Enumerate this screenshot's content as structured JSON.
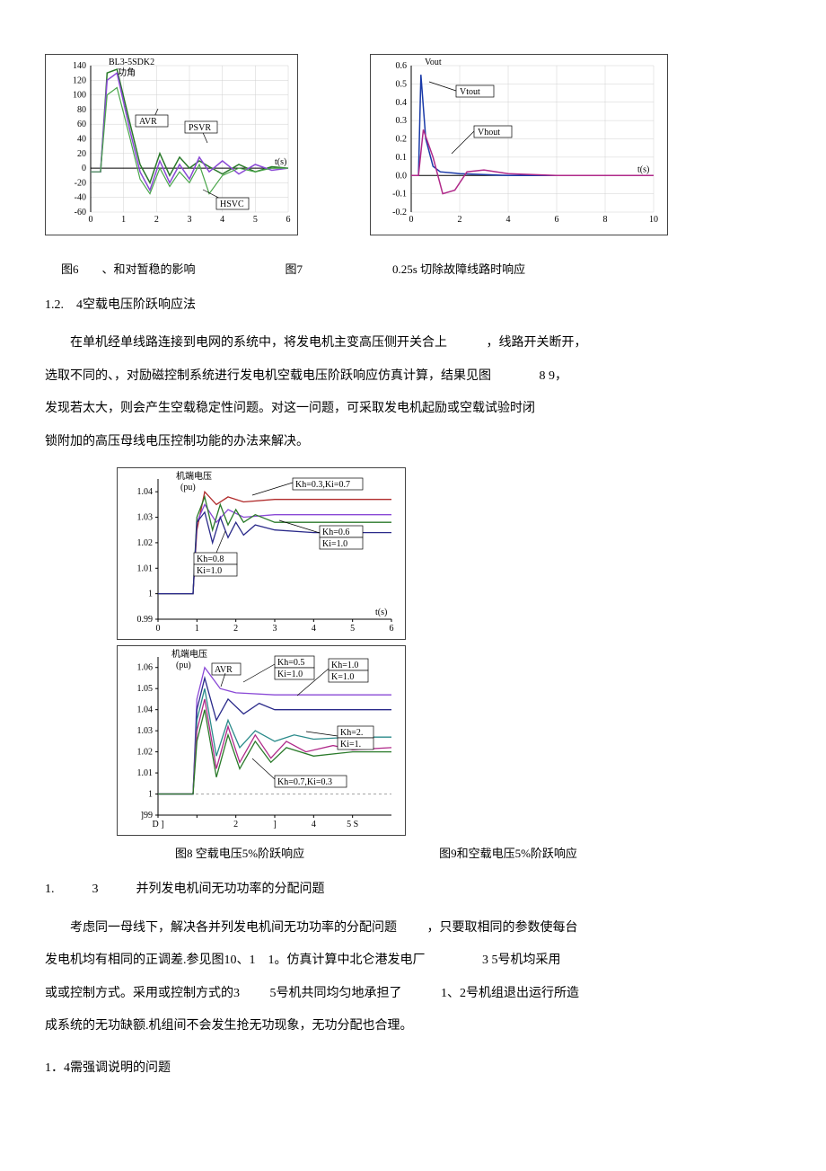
{
  "fig6": {
    "title": "BL3-5SDK2",
    "subtitle": "功角",
    "ylim": [
      -60,
      140
    ],
    "yticks": [
      -60,
      -40,
      -20,
      0,
      20,
      40,
      60,
      80,
      100,
      120,
      140
    ],
    "xlim": [
      0,
      6
    ],
    "xticks": [
      0,
      1,
      2,
      3,
      4,
      5,
      6
    ],
    "xlabel": "t(s)",
    "colors": {
      "avr": "#8a49d6",
      "psvr": "#2a7a2a",
      "hsvc": "#4aa64a"
    },
    "annotations": {
      "avr": "AVR",
      "psvr": "PSVR",
      "hsvc": "HSVC"
    },
    "green_series": [
      [
        0,
        -5
      ],
      [
        0.3,
        -5
      ],
      [
        0.5,
        130
      ],
      [
        0.8,
        135
      ],
      [
        1.2,
        60
      ],
      [
        1.5,
        5
      ],
      [
        1.8,
        -20
      ],
      [
        2.1,
        20
      ],
      [
        2.4,
        -10
      ],
      [
        2.7,
        15
      ],
      [
        3.0,
        0
      ],
      [
        3.3,
        10
      ],
      [
        3.6,
        2
      ],
      [
        4.0,
        -8
      ],
      [
        4.5,
        5
      ],
      [
        5.0,
        -5
      ],
      [
        5.5,
        2
      ],
      [
        6.0,
        0
      ]
    ],
    "purple_series": [
      [
        0,
        -5
      ],
      [
        0.3,
        -5
      ],
      [
        0.5,
        120
      ],
      [
        0.8,
        130
      ],
      [
        1.2,
        50
      ],
      [
        1.5,
        -5
      ],
      [
        1.8,
        -30
      ],
      [
        2.1,
        10
      ],
      [
        2.4,
        -20
      ],
      [
        2.7,
        5
      ],
      [
        3.0,
        -15
      ],
      [
        3.3,
        15
      ],
      [
        3.6,
        -5
      ],
      [
        4.0,
        10
      ],
      [
        4.5,
        -8
      ],
      [
        5.0,
        5
      ],
      [
        5.5,
        -3
      ],
      [
        6.0,
        0
      ]
    ],
    "green2_series": [
      [
        0,
        -5
      ],
      [
        0.3,
        -5
      ],
      [
        0.5,
        100
      ],
      [
        0.8,
        110
      ],
      [
        1.2,
        40
      ],
      [
        1.5,
        -15
      ],
      [
        1.8,
        -35
      ],
      [
        2.1,
        0
      ],
      [
        2.4,
        -25
      ],
      [
        2.7,
        -5
      ],
      [
        3.0,
        -20
      ],
      [
        3.3,
        5
      ],
      [
        3.6,
        -35
      ],
      [
        4.0,
        -10
      ],
      [
        4.5,
        0
      ],
      [
        5.0,
        -5
      ],
      [
        5.5,
        0
      ],
      [
        6.0,
        0
      ]
    ]
  },
  "fig7": {
    "ylabel": "Vout",
    "ylim": [
      -0.2,
      0.6
    ],
    "yticks": [
      -0.2,
      -0.1,
      0,
      0.1,
      0.2,
      0.3,
      0.4,
      0.5,
      0.6
    ],
    "xlim": [
      0,
      10
    ],
    "xticks": [
      0,
      2,
      4,
      6,
      8,
      10
    ],
    "xlabel": "t(s)",
    "colors": {
      "vtout": "#1a3aa8",
      "vhout": "#b02a8a"
    },
    "annotations": {
      "vtout": "Vtout",
      "vhout": "Vhout"
    },
    "vtout_series": [
      [
        0,
        0
      ],
      [
        0.3,
        0
      ],
      [
        0.4,
        0.55
      ],
      [
        0.6,
        0.2
      ],
      [
        0.9,
        0.05
      ],
      [
        1.2,
        0.02
      ],
      [
        2,
        0.01
      ],
      [
        4,
        0
      ],
      [
        6,
        0
      ],
      [
        8,
        0
      ],
      [
        10,
        0
      ]
    ],
    "vhout_series": [
      [
        0,
        0
      ],
      [
        0.3,
        0
      ],
      [
        0.5,
        0.25
      ],
      [
        0.9,
        0.1
      ],
      [
        1.3,
        -0.1
      ],
      [
        1.8,
        -0.08
      ],
      [
        2.3,
        0.02
      ],
      [
        3,
        0.03
      ],
      [
        4,
        0.01
      ],
      [
        6,
        0
      ],
      [
        8,
        0
      ],
      [
        10,
        0
      ]
    ]
  },
  "fig8": {
    "title": "机端电压",
    "unit": "(pu)",
    "ylim": [
      0.99,
      1.045
    ],
    "yticks": [
      0.99,
      1.0,
      1.01,
      1.02,
      1.03,
      1.04
    ],
    "ytick_labels": [
      "0.99",
      "1",
      "1.01",
      "1.02",
      "1.03",
      "1.04"
    ],
    "xlim": [
      0,
      6
    ],
    "xticks": [
      0,
      1,
      2,
      3,
      4,
      5,
      6
    ],
    "xlabel": "t(s)",
    "colors": {
      "s1": "#b02a2a",
      "s2": "#8a49d6",
      "s3": "#2a7a2a",
      "s4": "#2a2a8a"
    },
    "annotations": {
      "a1": "Kh=0.3,Ki=0.7",
      "a2": "Kh=0.6",
      "a3": "Ki=1.0",
      "a4": "Kh=0.8",
      "a5": "Ki=1.0"
    },
    "s1": [
      [
        0,
        1
      ],
      [
        0.9,
        1
      ],
      [
        1.0,
        1.025
      ],
      [
        1.2,
        1.04
      ],
      [
        1.5,
        1.035
      ],
      [
        1.8,
        1.038
      ],
      [
        2.2,
        1.036
      ],
      [
        3,
        1.037
      ],
      [
        4,
        1.037
      ],
      [
        5,
        1.037
      ],
      [
        6,
        1.037
      ]
    ],
    "s2": [
      [
        0,
        1
      ],
      [
        0.9,
        1
      ],
      [
        1.0,
        1.028
      ],
      [
        1.2,
        1.035
      ],
      [
        1.5,
        1.028
      ],
      [
        1.8,
        1.033
      ],
      [
        2.2,
        1.03
      ],
      [
        3,
        1.031
      ],
      [
        4,
        1.031
      ],
      [
        5,
        1.031
      ],
      [
        6,
        1.031
      ]
    ],
    "s3": [
      [
        0,
        1
      ],
      [
        0.9,
        1
      ],
      [
        1.0,
        1.03
      ],
      [
        1.2,
        1.038
      ],
      [
        1.4,
        1.025
      ],
      [
        1.6,
        1.035
      ],
      [
        1.8,
        1.027
      ],
      [
        2.0,
        1.033
      ],
      [
        2.2,
        1.028
      ],
      [
        2.5,
        1.031
      ],
      [
        3,
        1.028
      ],
      [
        4,
        1.028
      ],
      [
        5,
        1.028
      ],
      [
        6,
        1.028
      ]
    ],
    "s4": [
      [
        0,
        1
      ],
      [
        0.9,
        1
      ],
      [
        1.0,
        1.028
      ],
      [
        1.2,
        1.032
      ],
      [
        1.4,
        1.02
      ],
      [
        1.6,
        1.03
      ],
      [
        1.8,
        1.022
      ],
      [
        2.0,
        1.028
      ],
      [
        2.2,
        1.023
      ],
      [
        2.5,
        1.027
      ],
      [
        3,
        1.025
      ],
      [
        4,
        1.024
      ],
      [
        5,
        1.024
      ],
      [
        6,
        1.024
      ]
    ]
  },
  "fig9": {
    "title": "机端电压",
    "unit": "(pu)",
    "ylim": [
      0.99,
      1.065
    ],
    "yticks": [
      0.99,
      1.0,
      1.01,
      1.02,
      1.03,
      1.04,
      1.05,
      1.06
    ],
    "ytick_labels": [
      "]99",
      "1",
      "1.01",
      "1.02",
      "1.03",
      "1.04",
      "1.05",
      "1.06"
    ],
    "xlim": [
      0,
      6
    ],
    "xticks": [
      0,
      1,
      2,
      3,
      4,
      5
    ],
    "xtick_labels": [
      "D ]",
      "",
      "2",
      "]",
      "4",
      "5 S"
    ],
    "colors": {
      "s1": "#8a49d6",
      "s2": "#2a2a8a",
      "s3": "#2a8a8a",
      "s4": "#b02a8a",
      "s5": "#2a7a2a"
    },
    "annotations": {
      "avr": "AVR",
      "a1": "Kh=0.5",
      "a2": "Ki=1.0",
      "a3": "Kh=1.0",
      "a4": "K=1.0",
      "a5": "Kh=2.",
      "a6": "Ki=1.",
      "a7": "Kh=0.7,Ki=0.3"
    },
    "s1": [
      [
        0,
        1
      ],
      [
        0.9,
        1
      ],
      [
        1.0,
        1.045
      ],
      [
        1.2,
        1.06
      ],
      [
        1.6,
        1.05
      ],
      [
        2.0,
        1.048
      ],
      [
        3,
        1.047
      ],
      [
        4,
        1.047
      ],
      [
        5,
        1.047
      ],
      [
        6,
        1.047
      ]
    ],
    "s2": [
      [
        0,
        1
      ],
      [
        0.9,
        1
      ],
      [
        1.0,
        1.04
      ],
      [
        1.2,
        1.055
      ],
      [
        1.5,
        1.035
      ],
      [
        1.8,
        1.045
      ],
      [
        2.2,
        1.038
      ],
      [
        2.6,
        1.043
      ],
      [
        3,
        1.04
      ],
      [
        4,
        1.04
      ],
      [
        5,
        1.04
      ],
      [
        6,
        1.04
      ]
    ],
    "s3": [
      [
        0,
        1
      ],
      [
        0.9,
        1
      ],
      [
        1.0,
        1.035
      ],
      [
        1.2,
        1.05
      ],
      [
        1.5,
        1.018
      ],
      [
        1.8,
        1.035
      ],
      [
        2.1,
        1.022
      ],
      [
        2.5,
        1.03
      ],
      [
        3,
        1.025
      ],
      [
        3.5,
        1.028
      ],
      [
        4,
        1.026
      ],
      [
        5,
        1.027
      ],
      [
        6,
        1.027
      ]
    ],
    "s4": [
      [
        0,
        1
      ],
      [
        0.9,
        1
      ],
      [
        1.0,
        1.03
      ],
      [
        1.2,
        1.045
      ],
      [
        1.5,
        1.012
      ],
      [
        1.8,
        1.032
      ],
      [
        2.1,
        1.015
      ],
      [
        2.5,
        1.028
      ],
      [
        2.9,
        1.017
      ],
      [
        3.3,
        1.025
      ],
      [
        3.8,
        1.02
      ],
      [
        4.5,
        1.023
      ],
      [
        5,
        1.021
      ],
      [
        6,
        1.022
      ]
    ],
    "s5": [
      [
        0,
        1
      ],
      [
        0.9,
        1
      ],
      [
        1.0,
        1.025
      ],
      [
        1.2,
        1.04
      ],
      [
        1.5,
        1.008
      ],
      [
        1.8,
        1.028
      ],
      [
        2.1,
        1.012
      ],
      [
        2.5,
        1.025
      ],
      [
        2.9,
        1.015
      ],
      [
        3.3,
        1.022
      ],
      [
        4,
        1.018
      ],
      [
        5,
        1.02
      ],
      [
        6,
        1.02
      ]
    ]
  },
  "captions": {
    "fig6": "图6　　、和对暂稳的影响",
    "fig7_label": "图7",
    "fig7_text": "0.25s 切除故障线路时响应",
    "fig8": "图8 空载电压5%阶跃响应",
    "fig9": "图9和空载电压5%阶跃响应"
  },
  "headings": {
    "h1": "1.2.　4空载电压阶跃响应法",
    "h2": "1.　　　3　　　并列发电机间无功功率的分配问题",
    "h3": "1．4需强调说明的问题"
  },
  "paragraphs": {
    "p1a": "在单机经单线路连接到电网的系统中，将发电机主变高压侧开关合上",
    "p1b": "，线路开关断开，",
    "p2a": "选取不同的、，对励磁控制系统进行发电机空载电压阶跃响应仿真计算，结果见图",
    "p2b": "8 9，",
    "p3": "发现若太大，则会产生空载稳定性问题。对这一问题，可采取发电机起励或空载试验时闭",
    "p4": "锁附加的高压母线电压控制功能的办法来解决。",
    "p5a": "考虑同一母线下，解决各并列发电机间无功功率的分配问题",
    "p5b": "，只要取相同的参数使每台",
    "p6a": "发电机均有相同的正调差.参见图10、1　1。仿真计算中北仑港发电厂",
    "p6b": "3 5号机均采用",
    "p7a": "或或控制方式。采用或控制方式的3",
    "p7b": "5号机共同均匀地承担了",
    "p7c": "1、2号机组退出运行所造",
    "p8": "成系统的无功缺额.机组间不会发生抢无功现象，无功分配也合理。"
  }
}
